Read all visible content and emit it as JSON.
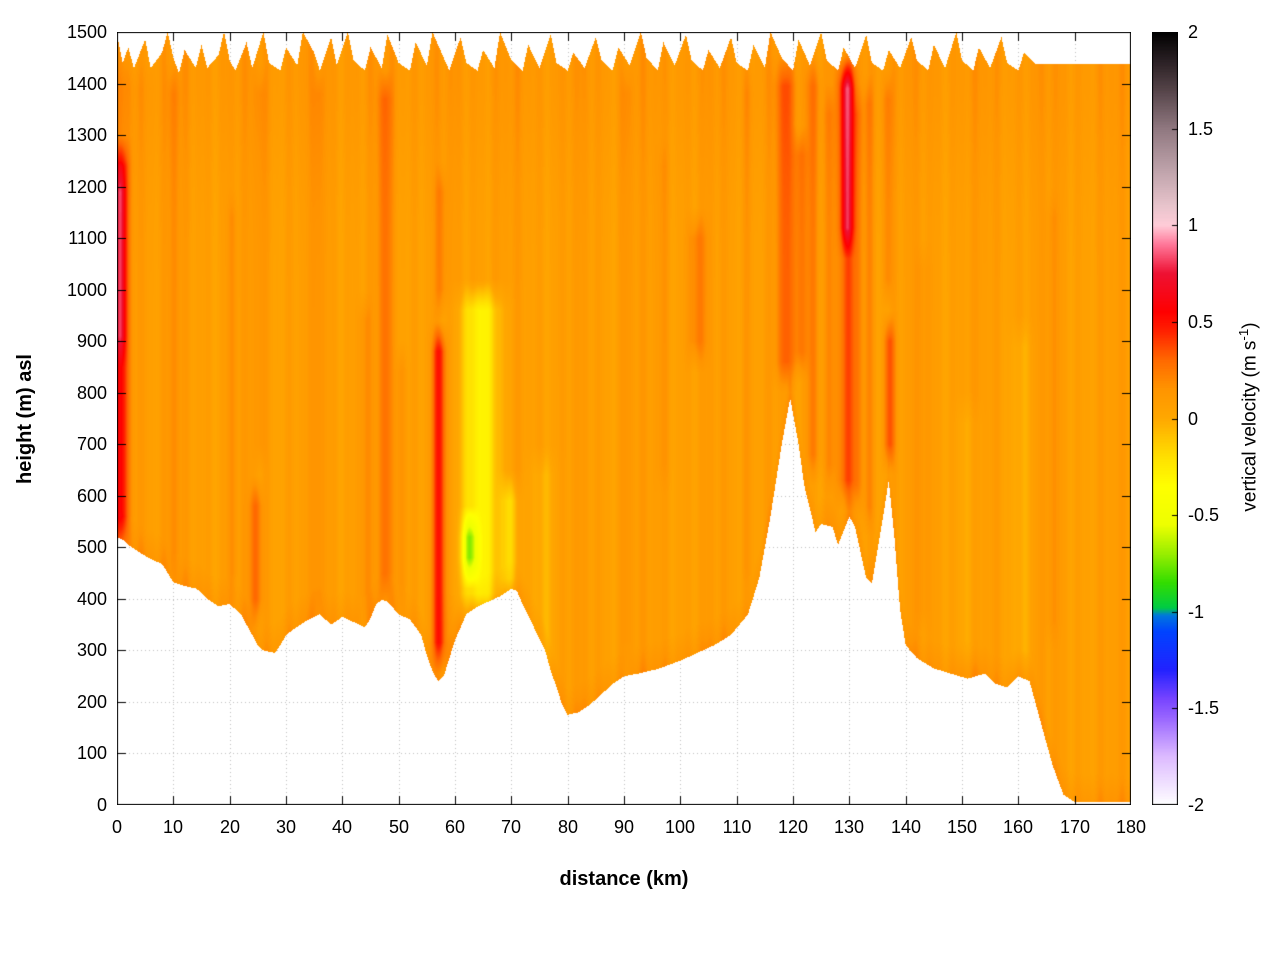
{
  "chart_data": {
    "type": "heatmap",
    "xlabel": "distance (km)",
    "ylabel": "height (m) asl",
    "colorbar_label": {
      "pre": "vertical velocity (m s",
      "sup": "-1",
      "post": ")"
    },
    "xlim": [
      0,
      180
    ],
    "ylim": [
      0,
      1500
    ],
    "clim": [
      -2,
      2
    ],
    "x_ticks": [
      0,
      10,
      20,
      30,
      40,
      50,
      60,
      70,
      80,
      90,
      100,
      110,
      120,
      130,
      140,
      150,
      160,
      170,
      180
    ],
    "y_ticks": [
      0,
      100,
      200,
      300,
      400,
      500,
      600,
      700,
      800,
      900,
      1000,
      1100,
      1200,
      1300,
      1400,
      1500
    ],
    "c_ticks": [
      2,
      1.5,
      1,
      0.5,
      0,
      -0.5,
      -1,
      -1.5,
      -2
    ],
    "grid": true,
    "grid_color": "#c0c0c0",
    "palette": [
      [
        -2.0,
        "#ffffff"
      ],
      [
        -1.75,
        "#ddbbff"
      ],
      [
        -1.55,
        "#9966ff"
      ],
      [
        -1.45,
        "#7744ff"
      ],
      [
        -1.3,
        "#2222ff"
      ],
      [
        -1.1,
        "#0044ff"
      ],
      [
        -1.02,
        "#0077dd"
      ],
      [
        -0.98,
        "#00cc44"
      ],
      [
        -0.85,
        "#33dd00"
      ],
      [
        -0.7,
        "#99ee00"
      ],
      [
        -0.55,
        "#eeff00"
      ],
      [
        -0.35,
        "#ffff00"
      ],
      [
        -0.2,
        "#ffe000"
      ],
      [
        0.0,
        "#ffa800"
      ],
      [
        0.15,
        "#ff9500"
      ],
      [
        0.3,
        "#ff6a00"
      ],
      [
        0.45,
        "#ff2200"
      ],
      [
        0.55,
        "#ff0000"
      ],
      [
        0.75,
        "#ee1133"
      ],
      [
        0.9,
        "#ff7799"
      ],
      [
        1.0,
        "#ffccd8"
      ],
      [
        1.1,
        "#e8c4cc"
      ],
      [
        1.3,
        "#bba0a8"
      ],
      [
        1.5,
        "#907880"
      ],
      [
        1.7,
        "#554449"
      ],
      [
        1.85,
        "#2a2024"
      ],
      [
        2.0,
        "#000000"
      ]
    ],
    "base_value": 0.08,
    "terrain_band": {
      "height": 55,
      "amp": 0.07
    },
    "top_band": {
      "center": 1430,
      "sigma": 200,
      "amp": 0.05
    },
    "texture_waves": [
      [
        1.7,
        0.025,
        0
      ],
      [
        0.53,
        0.02,
        2
      ],
      [
        3.1,
        0.015,
        1
      ]
    ],
    "terrain_profile": [
      [
        0,
        520
      ],
      [
        1,
        515
      ],
      [
        2,
        505
      ],
      [
        4,
        490
      ],
      [
        6,
        477
      ],
      [
        8,
        468
      ],
      [
        9,
        450
      ],
      [
        10,
        432
      ],
      [
        12,
        425
      ],
      [
        14,
        420
      ],
      [
        15,
        412
      ],
      [
        16,
        400
      ],
      [
        18,
        386
      ],
      [
        19,
        388
      ],
      [
        20,
        390
      ],
      [
        22,
        370
      ],
      [
        23,
        350
      ],
      [
        24,
        330
      ],
      [
        25,
        310
      ],
      [
        26,
        300
      ],
      [
        28,
        295
      ],
      [
        29,
        310
      ],
      [
        30,
        330
      ],
      [
        32,
        346
      ],
      [
        34,
        360
      ],
      [
        36,
        370
      ],
      [
        37,
        360
      ],
      [
        38,
        350
      ],
      [
        40,
        365
      ],
      [
        42,
        355
      ],
      [
        44,
        345
      ],
      [
        45,
        362
      ],
      [
        46,
        390
      ],
      [
        47,
        398
      ],
      [
        48,
        395
      ],
      [
        50,
        370
      ],
      [
        52,
        360
      ],
      [
        54,
        330
      ],
      [
        55,
        290
      ],
      [
        56,
        260
      ],
      [
        57,
        240
      ],
      [
        58,
        250
      ],
      [
        59,
        285
      ],
      [
        60,
        320
      ],
      [
        62,
        370
      ],
      [
        64,
        385
      ],
      [
        66,
        395
      ],
      [
        68,
        405
      ],
      [
        70,
        420
      ],
      [
        71,
        415
      ],
      [
        72,
        390
      ],
      [
        74,
        345
      ],
      [
        76,
        300
      ],
      [
        77,
        260
      ],
      [
        78,
        230
      ],
      [
        79,
        195
      ],
      [
        80,
        175
      ],
      [
        82,
        180
      ],
      [
        84,
        195
      ],
      [
        86,
        215
      ],
      [
        88,
        235
      ],
      [
        90,
        250
      ],
      [
        93,
        256
      ],
      [
        96,
        264
      ],
      [
        100,
        280
      ],
      [
        103,
        295
      ],
      [
        106,
        310
      ],
      [
        109,
        330
      ],
      [
        112,
        370
      ],
      [
        114,
        440
      ],
      [
        116,
        560
      ],
      [
        118,
        700
      ],
      [
        119.5,
        790
      ],
      [
        121,
        700
      ],
      [
        122,
        620
      ],
      [
        124,
        530
      ],
      [
        125,
        545
      ],
      [
        127,
        540
      ],
      [
        128,
        505
      ],
      [
        130,
        560
      ],
      [
        131,
        540
      ],
      [
        133,
        440
      ],
      [
        134,
        430
      ],
      [
        136,
        560
      ],
      [
        137,
        630
      ],
      [
        138,
        520
      ],
      [
        139,
        380
      ],
      [
        140,
        310
      ],
      [
        142,
        285
      ],
      [
        145,
        265
      ],
      [
        148,
        255
      ],
      [
        151,
        245
      ],
      [
        154,
        255
      ],
      [
        156,
        235
      ],
      [
        158,
        228
      ],
      [
        160,
        250
      ],
      [
        162,
        240
      ],
      [
        163,
        200
      ],
      [
        165,
        120
      ],
      [
        166,
        80
      ],
      [
        168,
        20
      ],
      [
        170,
        6
      ],
      [
        174,
        5
      ],
      [
        180,
        5
      ]
    ],
    "top_profile": [
      [
        0,
        1495
      ],
      [
        1,
        1440
      ],
      [
        2,
        1470
      ],
      [
        3,
        1430
      ],
      [
        5,
        1485
      ],
      [
        6,
        1430
      ],
      [
        8,
        1460
      ],
      [
        9,
        1500
      ],
      [
        10,
        1450
      ],
      [
        11,
        1420
      ],
      [
        12,
        1465
      ],
      [
        14,
        1430
      ],
      [
        15,
        1475
      ],
      [
        16,
        1430
      ],
      [
        18,
        1455
      ],
      [
        19,
        1500
      ],
      [
        20,
        1445
      ],
      [
        21,
        1425
      ],
      [
        23,
        1480
      ],
      [
        24,
        1430
      ],
      [
        26,
        1500
      ],
      [
        27,
        1440
      ],
      [
        29,
        1425
      ],
      [
        30,
        1470
      ],
      [
        32,
        1435
      ],
      [
        33,
        1500
      ],
      [
        35,
        1460
      ],
      [
        36,
        1425
      ],
      [
        38,
        1490
      ],
      [
        39,
        1435
      ],
      [
        41,
        1500
      ],
      [
        42,
        1445
      ],
      [
        44,
        1425
      ],
      [
        45,
        1470
      ],
      [
        47,
        1430
      ],
      [
        48,
        1495
      ],
      [
        50,
        1440
      ],
      [
        52,
        1425
      ],
      [
        53,
        1480
      ],
      [
        55,
        1435
      ],
      [
        56,
        1500
      ],
      [
        58,
        1450
      ],
      [
        59,
        1425
      ],
      [
        61,
        1490
      ],
      [
        62,
        1440
      ],
      [
        64,
        1425
      ],
      [
        65,
        1465
      ],
      [
        67,
        1430
      ],
      [
        68,
        1500
      ],
      [
        70,
        1445
      ],
      [
        72,
        1425
      ],
      [
        73,
        1475
      ],
      [
        75,
        1430
      ],
      [
        77,
        1495
      ],
      [
        78,
        1440
      ],
      [
        80,
        1425
      ],
      [
        81,
        1460
      ],
      [
        83,
        1430
      ],
      [
        85,
        1490
      ],
      [
        86,
        1445
      ],
      [
        88,
        1425
      ],
      [
        89,
        1470
      ],
      [
        91,
        1435
      ],
      [
        93,
        1500
      ],
      [
        94,
        1450
      ],
      [
        96,
        1425
      ],
      [
        97,
        1480
      ],
      [
        99,
        1435
      ],
      [
        101,
        1495
      ],
      [
        102,
        1445
      ],
      [
        104,
        1425
      ],
      [
        105,
        1465
      ],
      [
        107,
        1430
      ],
      [
        109,
        1490
      ],
      [
        110,
        1440
      ],
      [
        112,
        1425
      ],
      [
        113,
        1475
      ],
      [
        115,
        1430
      ],
      [
        116,
        1500
      ],
      [
        118,
        1450
      ],
      [
        120,
        1425
      ],
      [
        121,
        1485
      ],
      [
        123,
        1435
      ],
      [
        125,
        1500
      ],
      [
        126,
        1445
      ],
      [
        128,
        1425
      ],
      [
        129,
        1470
      ],
      [
        131,
        1430
      ],
      [
        133,
        1495
      ],
      [
        134,
        1440
      ],
      [
        136,
        1425
      ],
      [
        137,
        1465
      ],
      [
        139,
        1430
      ],
      [
        141,
        1490
      ],
      [
        142,
        1445
      ],
      [
        144,
        1425
      ],
      [
        145,
        1475
      ],
      [
        147,
        1430
      ],
      [
        149,
        1500
      ],
      [
        150,
        1445
      ],
      [
        152,
        1425
      ],
      [
        153,
        1470
      ],
      [
        155,
        1430
      ],
      [
        157,
        1490
      ],
      [
        158,
        1440
      ],
      [
        160,
        1425
      ],
      [
        161,
        1460
      ],
      [
        163,
        1438
      ],
      [
        165,
        1438
      ],
      [
        170,
        1438
      ],
      [
        180,
        1438
      ]
    ],
    "features": [
      {
        "x": 0.6,
        "sx": 1.4,
        "y0": 500,
        "y1": 1300,
        "amp": 0.4
      },
      {
        "x": 0.5,
        "sx": 1.0,
        "y0": 850,
        "y1": 1250,
        "amp": 0.25
      },
      {
        "x": 2,
        "sx": 4.0,
        "y0": 430,
        "y1": 1450,
        "amp": 0.05
      },
      {
        "x": 10,
        "sx": 1.0,
        "y0": 430,
        "y1": 1440,
        "amp": 0.1
      },
      {
        "x": 20.5,
        "sx": 0.9,
        "y0": 390,
        "y1": 1200,
        "amp": 0.08
      },
      {
        "x": 24.7,
        "sx": 1.1,
        "y0": 340,
        "y1": 640,
        "amp": 0.22
      },
      {
        "x": 25.5,
        "sx": 1.0,
        "y0": 640,
        "y1": 1440,
        "amp": 0.08
      },
      {
        "x": 35.8,
        "sx": 0.9,
        "y0": 350,
        "y1": 1440,
        "amp": 0.09
      },
      {
        "x": 44,
        "sx": 1.1,
        "y0": 350,
        "y1": 1000,
        "amp": 0.1
      },
      {
        "x": 47.6,
        "sx": 1.1,
        "y0": 390,
        "y1": 1430,
        "amp": 0.2
      },
      {
        "x": 50.5,
        "sx": 0.9,
        "y0": 370,
        "y1": 900,
        "amp": 0.1
      },
      {
        "x": 57.2,
        "sx": 1.2,
        "y0": 255,
        "y1": 940,
        "amp": 0.4
      },
      {
        "x": 57.5,
        "sx": 1.0,
        "y0": 940,
        "y1": 1250,
        "amp": 0.13
      },
      {
        "x": 64.5,
        "sx": 3.6,
        "y0": 350,
        "y1": 1020,
        "amp": -0.36
      },
      {
        "x": 62.6,
        "sx": 1.3,
        "y0": 420,
        "y1": 580,
        "amp": -0.52
      },
      {
        "x": 69.8,
        "sx": 1.6,
        "y0": 380,
        "y1": 650,
        "amp": -0.22
      },
      {
        "x": 75.5,
        "sx": 2.2,
        "y0": 230,
        "y1": 700,
        "amp": -0.1
      },
      {
        "x": 90.5,
        "sx": 1.1,
        "y0": 260,
        "y1": 1440,
        "amp": 0.07
      },
      {
        "x": 97,
        "sx": 1.2,
        "y0": 600,
        "y1": 1300,
        "amp": 0.05
      },
      {
        "x": 103,
        "sx": 1.6,
        "y0": 840,
        "y1": 1160,
        "amp": 0.16
      },
      {
        "x": 112,
        "sx": 1.0,
        "y0": 400,
        "y1": 1440,
        "amp": 0.06
      },
      {
        "x": 118.6,
        "sx": 1.6,
        "y0": 800,
        "y1": 1455,
        "amp": 0.22
      },
      {
        "x": 121.3,
        "sx": 1.2,
        "y0": 820,
        "y1": 1320,
        "amp": 0.18
      },
      {
        "x": 123.6,
        "sx": 1.2,
        "y0": 620,
        "y1": 1455,
        "amp": 0.16
      },
      {
        "x": 126.5,
        "sx": 1.0,
        "y0": 600,
        "y1": 1400,
        "amp": 0.1
      },
      {
        "x": 129.6,
        "sx": 1.5,
        "y0": 570,
        "y1": 1460,
        "amp": 0.26
      },
      {
        "x": 129.6,
        "sx": 1.1,
        "y0": 1060,
        "y1": 1450,
        "amp": 0.42
      },
      {
        "x": 131.5,
        "sx": 0.9,
        "y0": 560,
        "y1": 1400,
        "amp": 0.12
      },
      {
        "x": 133.4,
        "sx": 0.9,
        "y0": 520,
        "y1": 1420,
        "amp": 0.12
      },
      {
        "x": 137.1,
        "sx": 1.0,
        "y0": 640,
        "y1": 960,
        "amp": 0.28
      },
      {
        "x": 136.8,
        "sx": 0.9,
        "y0": 960,
        "y1": 1430,
        "amp": 0.13
      },
      {
        "x": 143,
        "sx": 1.2,
        "y0": 320,
        "y1": 1100,
        "amp": 0.06
      },
      {
        "x": 151,
        "sx": 2.2,
        "y0": 260,
        "y1": 800,
        "amp": -0.07
      },
      {
        "x": 160.5,
        "sx": 1.8,
        "y0": 240,
        "y1": 950,
        "amp": -0.09
      },
      {
        "x": 166,
        "sx": 1.2,
        "y0": 300,
        "y1": 1200,
        "amp": 0.06
      }
    ]
  }
}
